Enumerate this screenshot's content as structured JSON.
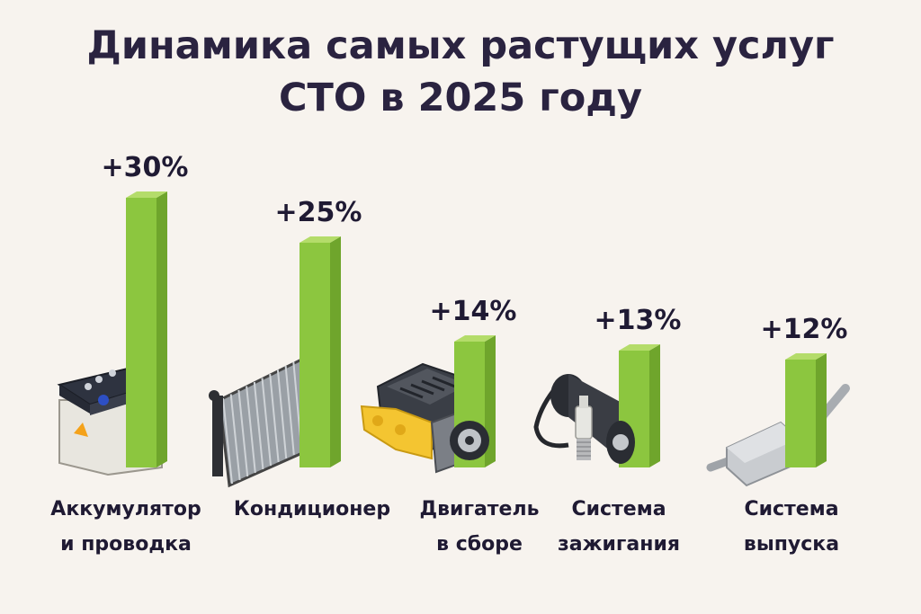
{
  "title": {
    "line1": "Динамика самых растущих услуг",
    "line2": "СТО в 2025 году"
  },
  "colors": {
    "background": "#f7f3ee",
    "bar_front": "#8cc63f",
    "bar_side": "#6fa52c",
    "bar_top": "#b4dc6a",
    "text": "#1f1a33"
  },
  "chart_data": {
    "type": "bar",
    "title": "Динамика самых растущих услуг СТО в 2025 году",
    "categories": [
      [
        "Аккумулятор",
        "и проводка"
      ],
      [
        "Кондиционер"
      ],
      [
        "Двигатель",
        "в сборе"
      ],
      [
        "Система",
        "зажигания"
      ],
      [
        "Система",
        "выпуска"
      ]
    ],
    "values": [
      30,
      25,
      14,
      13,
      12
    ],
    "value_labels": [
      "+30%",
      "+25%",
      "+14%",
      "+13%",
      "+12%"
    ],
    "icons": [
      "battery-icon",
      "radiator-icon",
      "engine-icon",
      "ignition-coil-icon",
      "muffler-icon"
    ],
    "grid": false,
    "legend": "none"
  }
}
